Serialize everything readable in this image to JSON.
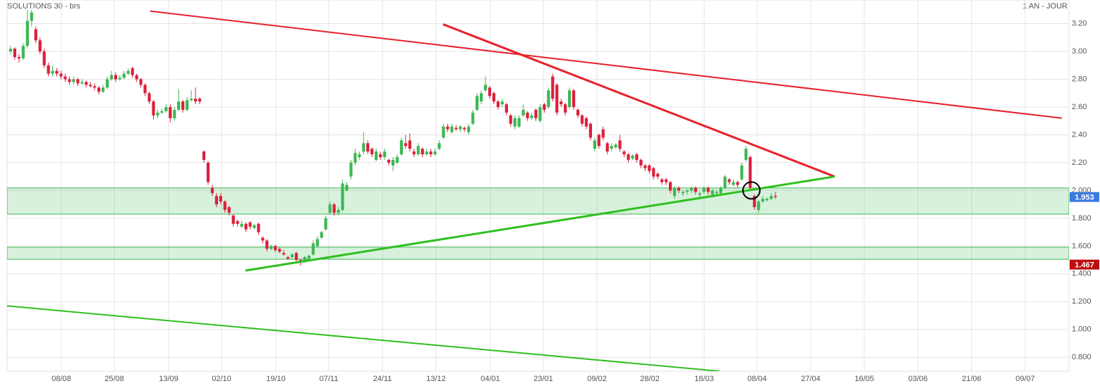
{
  "chart_data": {
    "type": "candlestick",
    "title": "SOLUTIONS 30 - brs",
    "subtitle": "1 AN - JOUR",
    "up_color": "#3cb853",
    "down_color": "#dc1f3c",
    "grid": true,
    "xlim": [
      -0.84,
      251.85
    ],
    "ylim": [
      0.7,
      3.37
    ],
    "xticks": [
      {
        "value": 12.09,
        "label": "08/08"
      },
      {
        "value": 24.68,
        "label": "25/08"
      },
      {
        "value": 37.61,
        "label": "13/09"
      },
      {
        "value": 50.2,
        "label": "02/10"
      },
      {
        "value": 63.13,
        "label": "19/10"
      },
      {
        "value": 75.72,
        "label": "07/11"
      },
      {
        "value": 88.48,
        "label": "24/11"
      },
      {
        "value": 101.24,
        "label": "13/12"
      },
      {
        "value": 114.17,
        "label": "04/01"
      },
      {
        "value": 126.76,
        "label": "23/01"
      },
      {
        "value": 139.52,
        "label": "09/02"
      },
      {
        "value": 152.12,
        "label": "28/02"
      },
      {
        "value": 165.05,
        "label": "18/03"
      },
      {
        "value": 177.64,
        "label": "08/04"
      },
      {
        "value": 190.4,
        "label": "27/04"
      },
      {
        "value": 203.16,
        "label": "16/05"
      },
      {
        "value": 215.92,
        "label": "03/06"
      },
      {
        "value": 228.68,
        "label": "21/06"
      },
      {
        "value": 241.44,
        "label": "09/07"
      }
    ],
    "yticks": [
      {
        "value": 3.2,
        "label": "3.20"
      },
      {
        "value": 3.0,
        "label": "3.00"
      },
      {
        "value": 2.8,
        "label": "2.80"
      },
      {
        "value": 2.6,
        "label": "2.60"
      },
      {
        "value": 2.4,
        "label": "2.40"
      },
      {
        "value": 2.2,
        "label": "2.20"
      },
      {
        "value": 2.0,
        "label": "2.000"
      },
      {
        "value": 1.8,
        "label": "1.800"
      },
      {
        "value": 1.6,
        "label": "1.600"
      },
      {
        "value": 1.4,
        "label": "1.400"
      },
      {
        "value": 1.2,
        "label": "1.200"
      },
      {
        "value": 1.0,
        "label": "1.000"
      },
      {
        "value": 0.8,
        "label": "0.800"
      }
    ],
    "zones": [
      {
        "color": "#3cb853",
        "range": [
          1.83,
          2.018
        ]
      },
      {
        "color": "#3cb853",
        "range": [
          1.505,
          1.592
        ]
      }
    ],
    "trendlines": [
      {
        "color": "#e8202a",
        "weight": "normal",
        "points": [
          [
            33.24,
            3.29
          ],
          [
            250.17,
            2.52
          ]
        ]
      },
      {
        "color": "#e8202a",
        "weight": "bold",
        "points": [
          [
            102.92,
            3.195
          ],
          [
            196.1,
            2.1
          ]
        ]
      },
      {
        "color": "#2fbf1f",
        "weight": "bold",
        "points": [
          [
            55.91,
            1.424
          ],
          [
            196.1,
            2.1
          ]
        ]
      },
      {
        "color": "#2fbf1f",
        "weight": "normal",
        "points": [
          [
            -0.84,
            1.17
          ],
          [
            168.74,
            0.7
          ]
        ]
      }
    ],
    "marker": {
      "x": 176.29,
      "y": 2.0
    },
    "price_tags": [
      {
        "value": 1.953,
        "color": "#3a7be0"
      },
      {
        "value": 1.467,
        "color": "#c00d0d"
      }
    ],
    "ohlc": [
      [
        3.0,
        3.04,
        2.98,
        3.02
      ],
      [
        3.02,
        3.03,
        2.94,
        2.96
      ],
      [
        2.96,
        2.98,
        2.92,
        2.95
      ],
      [
        2.95,
        3.06,
        2.94,
        3.04
      ],
      [
        3.04,
        3.3,
        3.02,
        3.22
      ],
      [
        3.22,
        3.3,
        3.18,
        3.28
      ],
      [
        3.16,
        3.18,
        3.06,
        3.08
      ],
      [
        3.08,
        3.1,
        2.98,
        3.0
      ],
      [
        3.0,
        3.02,
        2.88,
        2.9
      ],
      [
        2.9,
        2.92,
        2.82,
        2.84
      ],
      [
        2.84,
        2.9,
        2.82,
        2.86
      ],
      [
        2.86,
        2.88,
        2.82,
        2.84
      ],
      [
        2.84,
        2.86,
        2.8,
        2.82
      ],
      [
        2.82,
        2.84,
        2.78,
        2.8
      ],
      [
        2.8,
        2.82,
        2.76,
        2.78
      ],
      [
        2.78,
        2.82,
        2.76,
        2.8
      ],
      [
        2.8,
        2.81,
        2.75,
        2.77
      ],
      [
        2.77,
        2.8,
        2.76,
        2.78
      ],
      [
        2.78,
        2.79,
        2.74,
        2.76
      ],
      [
        2.76,
        2.78,
        2.74,
        2.75
      ],
      [
        2.75,
        2.77,
        2.72,
        2.74
      ],
      [
        2.74,
        2.75,
        2.69,
        2.71
      ],
      [
        2.71,
        2.76,
        2.7,
        2.74
      ],
      [
        2.74,
        2.82,
        2.73,
        2.8
      ],
      [
        2.8,
        2.86,
        2.79,
        2.83
      ],
      [
        2.83,
        2.85,
        2.78,
        2.8
      ],
      [
        2.8,
        2.83,
        2.79,
        2.81
      ],
      [
        2.81,
        2.86,
        2.8,
        2.84
      ],
      [
        2.84,
        2.88,
        2.83,
        2.86
      ],
      [
        2.88,
        2.89,
        2.81,
        2.83
      ],
      [
        2.83,
        2.84,
        2.78,
        2.8
      ],
      [
        2.8,
        2.81,
        2.74,
        2.76
      ],
      [
        2.76,
        2.77,
        2.68,
        2.7
      ],
      [
        2.7,
        2.71,
        2.62,
        2.64
      ],
      [
        2.64,
        2.65,
        2.51,
        2.54
      ],
      [
        2.54,
        2.58,
        2.52,
        2.56
      ],
      [
        2.56,
        2.59,
        2.55,
        2.57
      ],
      [
        2.57,
        2.62,
        2.56,
        2.6
      ],
      [
        2.6,
        2.62,
        2.49,
        2.52
      ],
      [
        2.52,
        2.6,
        2.5,
        2.58
      ],
      [
        2.58,
        2.73,
        2.57,
        2.64
      ],
      [
        2.64,
        2.65,
        2.56,
        2.58
      ],
      [
        2.58,
        2.67,
        2.57,
        2.65
      ],
      [
        2.65,
        2.72,
        2.64,
        2.66
      ],
      [
        2.66,
        2.74,
        2.62,
        2.64
      ],
      [
        2.66,
        2.67,
        2.62,
        2.64
      ],
      [
        2.28,
        2.29,
        2.2,
        2.22
      ],
      [
        2.2,
        2.21,
        2.04,
        2.06
      ],
      [
        2.02,
        2.04,
        1.96,
        1.98
      ],
      [
        1.96,
        1.98,
        1.88,
        1.9
      ],
      [
        1.96,
        1.98,
        1.9,
        1.92
      ],
      [
        1.92,
        1.93,
        1.84,
        1.86
      ],
      [
        1.88,
        1.89,
        1.82,
        1.84
      ],
      [
        1.82,
        1.83,
        1.74,
        1.76
      ],
      [
        1.78,
        1.79,
        1.74,
        1.76
      ],
      [
        1.74,
        1.78,
        1.73,
        1.76
      ],
      [
        1.76,
        1.77,
        1.7,
        1.72
      ],
      [
        1.77,
        1.78,
        1.72,
        1.74
      ],
      [
        1.73,
        1.76,
        1.72,
        1.75
      ],
      [
        1.76,
        1.77,
        1.68,
        1.7
      ],
      [
        1.66,
        1.67,
        1.62,
        1.64
      ],
      [
        1.64,
        1.65,
        1.56,
        1.58
      ],
      [
        1.58,
        1.61,
        1.57,
        1.6
      ],
      [
        1.6,
        1.61,
        1.56,
        1.57
      ],
      [
        1.58,
        1.59,
        1.55,
        1.56
      ],
      [
        1.55,
        1.57,
        1.53,
        1.54
      ],
      [
        1.52,
        1.53,
        1.5,
        1.51
      ],
      [
        1.52,
        1.55,
        1.51,
        1.54
      ],
      [
        1.55,
        1.56,
        1.49,
        1.5
      ],
      [
        1.5,
        1.51,
        1.46,
        1.48
      ],
      [
        1.49,
        1.53,
        1.48,
        1.52
      ],
      [
        1.51,
        1.54,
        1.5,
        1.53
      ],
      [
        1.54,
        1.64,
        1.53,
        1.62
      ],
      [
        1.6,
        1.67,
        1.59,
        1.65
      ],
      [
        1.66,
        1.71,
        1.65,
        1.7
      ],
      [
        1.72,
        1.82,
        1.71,
        1.8
      ],
      [
        1.84,
        1.92,
        1.83,
        1.9
      ],
      [
        1.9,
        1.91,
        1.82,
        1.84
      ],
      [
        1.84,
        1.88,
        1.82,
        1.86
      ],
      [
        1.86,
        2.08,
        1.85,
        2.05
      ],
      [
        2.0,
        2.06,
        1.99,
        2.04
      ],
      [
        2.1,
        2.22,
        2.08,
        2.2
      ],
      [
        2.2,
        2.3,
        2.18,
        2.27
      ],
      [
        2.24,
        2.28,
        2.22,
        2.26
      ],
      [
        2.28,
        2.42,
        2.26,
        2.34
      ],
      [
        2.34,
        2.36,
        2.26,
        2.28
      ],
      [
        2.3,
        2.31,
        2.24,
        2.26
      ],
      [
        2.22,
        2.3,
        2.21,
        2.28
      ],
      [
        2.26,
        2.28,
        2.22,
        2.24
      ],
      [
        2.24,
        2.3,
        2.22,
        2.28
      ],
      [
        2.22,
        2.23,
        2.18,
        2.2
      ],
      [
        2.18,
        2.24,
        2.14,
        2.22
      ],
      [
        2.2,
        2.26,
        2.19,
        2.24
      ],
      [
        2.26,
        2.38,
        2.25,
        2.36
      ],
      [
        2.34,
        2.4,
        2.3,
        2.32
      ],
      [
        2.36,
        2.41,
        2.28,
        2.3
      ],
      [
        2.28,
        2.3,
        2.24,
        2.26
      ],
      [
        2.26,
        2.34,
        2.25,
        2.32
      ],
      [
        2.3,
        2.31,
        2.24,
        2.26
      ],
      [
        2.26,
        2.3,
        2.25,
        2.28
      ],
      [
        2.28,
        2.3,
        2.24,
        2.26
      ],
      [
        2.26,
        2.3,
        2.25,
        2.28
      ],
      [
        2.3,
        2.36,
        2.29,
        2.34
      ],
      [
        2.38,
        2.48,
        2.37,
        2.46
      ],
      [
        2.46,
        2.48,
        2.42,
        2.44
      ],
      [
        2.42,
        2.48,
        2.41,
        2.46
      ],
      [
        2.45,
        2.47,
        2.43,
        2.44
      ],
      [
        2.44,
        2.47,
        2.42,
        2.46
      ],
      [
        2.45,
        2.46,
        2.42,
        2.44
      ],
      [
        2.42,
        2.48,
        2.4,
        2.46
      ],
      [
        2.48,
        2.58,
        2.47,
        2.56
      ],
      [
        2.58,
        2.7,
        2.57,
        2.68
      ],
      [
        2.64,
        2.72,
        2.62,
        2.7
      ],
      [
        2.72,
        2.82,
        2.71,
        2.76
      ],
      [
        2.74,
        2.75,
        2.66,
        2.68
      ],
      [
        2.7,
        2.71,
        2.62,
        2.64
      ],
      [
        2.64,
        2.65,
        2.58,
        2.6
      ],
      [
        2.62,
        2.66,
        2.6,
        2.64
      ],
      [
        2.62,
        2.63,
        2.54,
        2.56
      ],
      [
        2.54,
        2.55,
        2.46,
        2.48
      ],
      [
        2.46,
        2.54,
        2.44,
        2.52
      ],
      [
        2.46,
        2.54,
        2.45,
        2.52
      ],
      [
        2.54,
        2.62,
        2.53,
        2.58
      ],
      [
        2.56,
        2.57,
        2.5,
        2.52
      ],
      [
        2.52,
        2.56,
        2.51,
        2.54
      ],
      [
        2.58,
        2.59,
        2.5,
        2.52
      ],
      [
        2.5,
        2.62,
        2.49,
        2.6
      ],
      [
        2.62,
        2.63,
        2.56,
        2.58
      ],
      [
        2.6,
        2.74,
        2.59,
        2.72
      ],
      [
        2.82,
        2.84,
        2.64,
        2.66
      ],
      [
        2.76,
        2.77,
        2.54,
        2.56
      ],
      [
        2.64,
        2.66,
        2.6,
        2.62
      ],
      [
        2.62,
        2.63,
        2.54,
        2.56
      ],
      [
        2.6,
        2.74,
        2.59,
        2.72
      ],
      [
        2.72,
        2.73,
        2.58,
        2.6
      ],
      [
        2.58,
        2.59,
        2.52,
        2.54
      ],
      [
        2.54,
        2.55,
        2.46,
        2.48
      ],
      [
        2.52,
        2.53,
        2.44,
        2.46
      ],
      [
        2.48,
        2.49,
        2.36,
        2.38
      ],
      [
        2.3,
        2.38,
        2.28,
        2.36
      ],
      [
        2.4,
        2.41,
        2.3,
        2.32
      ],
      [
        2.44,
        2.46,
        2.36,
        2.38
      ],
      [
        2.34,
        2.35,
        2.26,
        2.28
      ],
      [
        2.3,
        2.34,
        2.28,
        2.32
      ],
      [
        2.31,
        2.34,
        2.3,
        2.33
      ],
      [
        2.36,
        2.4,
        2.28,
        2.3
      ],
      [
        2.28,
        2.29,
        2.24,
        2.26
      ],
      [
        2.26,
        2.27,
        2.2,
        2.22
      ],
      [
        2.23,
        2.26,
        2.22,
        2.25
      ],
      [
        2.26,
        2.27,
        2.2,
        2.22
      ],
      [
        2.22,
        2.23,
        2.16,
        2.18
      ],
      [
        2.18,
        2.19,
        2.14,
        2.16
      ],
      [
        2.18,
        2.19,
        2.12,
        2.14
      ],
      [
        2.16,
        2.17,
        2.08,
        2.1
      ],
      [
        2.12,
        2.13,
        2.08,
        2.1
      ],
      [
        2.08,
        2.09,
        2.04,
        2.06
      ],
      [
        2.08,
        2.09,
        2.04,
        2.06
      ],
      [
        2.06,
        2.07,
        1.98,
        2.0
      ],
      [
        1.96,
        2.03,
        1.94,
        2.02
      ],
      [
        2.02,
        2.03,
        1.98,
        2.0
      ],
      [
        1.98,
        2.0,
        1.96,
        1.99
      ],
      [
        1.99,
        2.01,
        1.97,
        2.0
      ],
      [
        2.0,
        2.03,
        1.98,
        2.02
      ],
      [
        2.02,
        2.03,
        1.97,
        1.99
      ],
      [
        1.97,
        1.99,
        1.94,
        1.98
      ],
      [
        1.99,
        2.03,
        1.98,
        2.02
      ],
      [
        2.02,
        2.03,
        1.97,
        1.99
      ],
      [
        1.97,
        2.01,
        1.95,
        2.0
      ],
      [
        1.98,
        2.0,
        1.96,
        1.99
      ],
      [
        1.98,
        2.03,
        1.97,
        2.02
      ],
      [
        2.02,
        2.11,
        2.01,
        2.1
      ],
      [
        2.08,
        2.09,
        2.04,
        2.06
      ],
      [
        2.04,
        2.08,
        2.03,
        2.06
      ],
      [
        2.06,
        2.07,
        2.02,
        2.04
      ],
      [
        2.08,
        2.2,
        2.07,
        2.18
      ],
      [
        2.22,
        2.32,
        2.21,
        2.3
      ],
      [
        2.24,
        2.25,
        2.0,
        2.02
      ],
      [
        1.96,
        1.97,
        1.86,
        1.88
      ],
      [
        1.86,
        1.93,
        1.84,
        1.92
      ],
      [
        1.92,
        1.96,
        1.91,
        1.94
      ],
      [
        1.93,
        1.95,
        1.92,
        1.94
      ],
      [
        1.94,
        1.98,
        1.93,
        1.96
      ],
      [
        1.96,
        1.99,
        1.94,
        1.953
      ]
    ]
  }
}
